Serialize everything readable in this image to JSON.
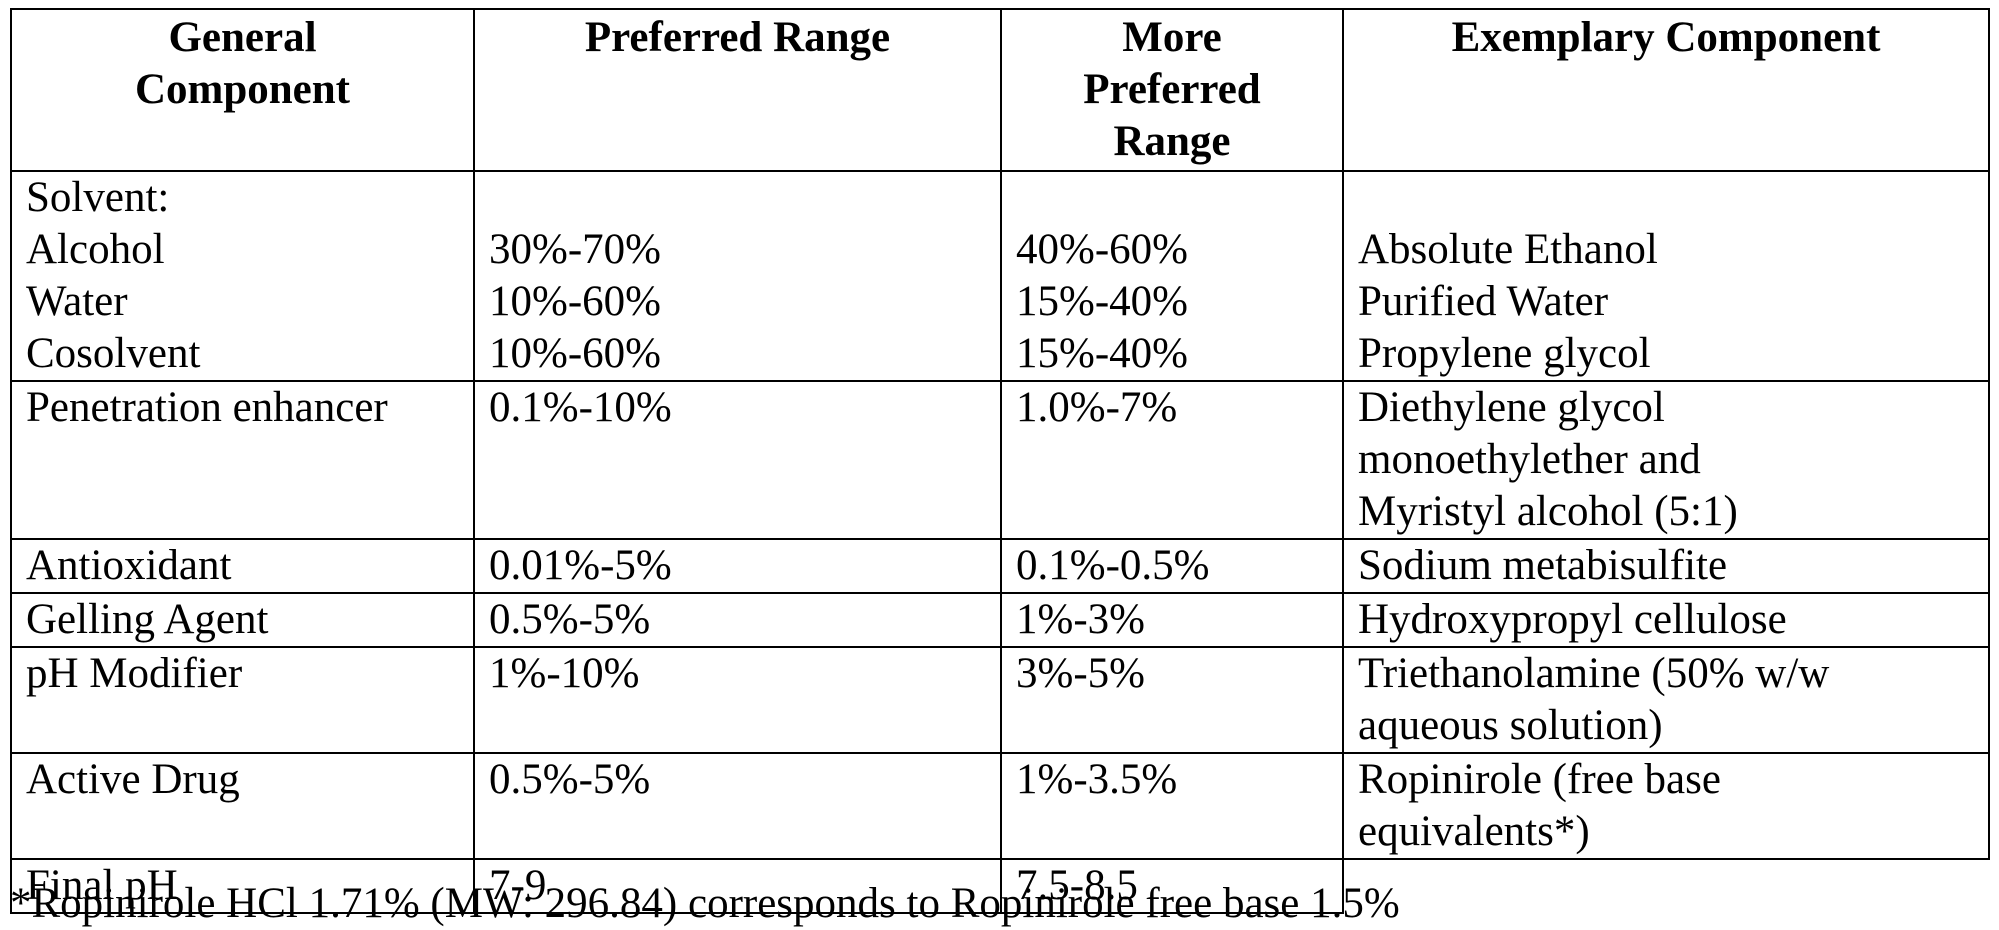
{
  "table": {
    "headers": [
      [
        "General",
        "Component"
      ],
      [
        "Preferred Range"
      ],
      [
        "More",
        "Preferred",
        "Range"
      ],
      [
        "Exemplary Component"
      ]
    ],
    "rows": [
      {
        "component": [
          "Solvent:",
          "Alcohol",
          "Water",
          "Cosolvent"
        ],
        "preferred": [
          "",
          "30%-70%",
          "10%-60%",
          "10%-60%"
        ],
        "more_preferred": [
          "",
          "40%-60%",
          "15%-40%",
          "15%-40%"
        ],
        "exemplary": [
          "",
          "Absolute Ethanol",
          "Purified Water",
          "Propylene glycol"
        ]
      },
      {
        "component": [
          "Penetration enhancer"
        ],
        "preferred": [
          "0.1%-10%"
        ],
        "more_preferred": [
          "1.0%-7%"
        ],
        "exemplary": [
          "Diethylene glycol",
          "monoethylether and",
          "Myristyl alcohol (5:1)"
        ]
      },
      {
        "component": [
          "Antioxidant"
        ],
        "preferred": [
          "0.01%-5%"
        ],
        "more_preferred": [
          "0.1%-0.5%"
        ],
        "exemplary": [
          "Sodium metabisulfite"
        ]
      },
      {
        "component": [
          "Gelling Agent"
        ],
        "preferred": [
          "0.5%-5%"
        ],
        "more_preferred": [
          "1%-3%"
        ],
        "exemplary": [
          "Hydroxypropyl cellulose"
        ]
      },
      {
        "component": [
          "pH Modifier"
        ],
        "preferred": [
          "1%-10%"
        ],
        "more_preferred": [
          "3%-5%"
        ],
        "exemplary": [
          "Triethanolamine (50% w/w",
          "aqueous solution)"
        ]
      },
      {
        "component": [
          "Active Drug"
        ],
        "preferred": [
          "0.5%-5%"
        ],
        "more_preferred": [
          "1%-3.5%"
        ],
        "exemplary": [
          "Ropinirole (free base",
          "equivalents*)"
        ]
      },
      {
        "component": [
          "Final pH"
        ],
        "preferred": [
          "7-9"
        ],
        "more_preferred": [
          "7.5-8.5"
        ],
        "exemplary": []
      }
    ]
  },
  "footnote": "*Ropinirole HCl 1.71% (MW: 296.84) corresponds to Ropinirole free base 1.5%"
}
